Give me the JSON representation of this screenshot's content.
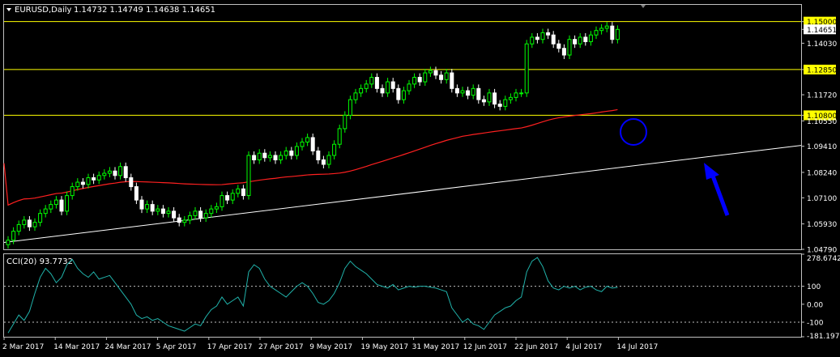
{
  "header": {
    "symbol": "EURUSD,Daily",
    "ohlc": "1.14732 1.14749 1.14638 1.14651"
  },
  "indicator": {
    "title": "CCI(20) 93.7732"
  },
  "colors": {
    "bull": "#00ff00",
    "bear": "#ffffff",
    "ma": "#ff2020",
    "trend": "#ffffff",
    "hline": "#ffff00",
    "annot": "#0000ff",
    "cci": "#20b2aa",
    "bg": "#000000",
    "grid": "#c0c0c0"
  },
  "chart_data": [
    {
      "type": "candlestick",
      "ylim": [
        1.0479,
        1.1575
      ],
      "y_ticks": [
        "1.15000",
        "1.14651",
        "1.14030",
        "1.12850",
        "1.11720",
        "1.10800",
        "1.10550",
        "1.09410",
        "1.08240",
        "1.07100",
        "1.05930",
        "1.04790"
      ],
      "x_labels": [
        "2 Mar 2017",
        "14 Mar 2017",
        "24 Mar 2017",
        "5 Apr 2017",
        "17 Apr 2017",
        "27 Apr 2017",
        "9 May 2017",
        "19 May 2017",
        "31 May 2017",
        "12 Jun 2017",
        "22 Jun 2017",
        "4 Jul 2017",
        "14 Jul 2017"
      ],
      "horizontal_levels": [
        "1.15000",
        "1.12850",
        "1.10800"
      ],
      "current_price": "1.14651",
      "closes": [
        1.052,
        1.056,
        1.059,
        1.061,
        1.058,
        1.06,
        1.064,
        1.066,
        1.068,
        1.07,
        1.065,
        1.072,
        1.076,
        1.078,
        1.077,
        1.08,
        1.079,
        1.081,
        1.082,
        1.083,
        1.081,
        1.085,
        1.08,
        1.076,
        1.07,
        1.066,
        1.068,
        1.065,
        1.066,
        1.064,
        1.065,
        1.062,
        1.06,
        1.061,
        1.063,
        1.065,
        1.062,
        1.064,
        1.066,
        1.067,
        1.072,
        1.07,
        1.073,
        1.075,
        1.072,
        1.09,
        1.088,
        1.091,
        1.089,
        1.09,
        1.088,
        1.09,
        1.092,
        1.09,
        1.094,
        1.096,
        1.098,
        1.092,
        1.088,
        1.086,
        1.09,
        1.095,
        1.102,
        1.108,
        1.115,
        1.118,
        1.12,
        1.122,
        1.125,
        1.12,
        1.118,
        1.123,
        1.12,
        1.115,
        1.119,
        1.122,
        1.125,
        1.123,
        1.127,
        1.128,
        1.126,
        1.124,
        1.127,
        1.12,
        1.118,
        1.119,
        1.117,
        1.12,
        1.115,
        1.114,
        1.118,
        1.113,
        1.112,
        1.115,
        1.116,
        1.118,
        1.118,
        1.14,
        1.143,
        1.142,
        1.145,
        1.144,
        1.14,
        1.138,
        1.135,
        1.142,
        1.14,
        1.143,
        1.141,
        1.144,
        1.146,
        1.147,
        1.148,
        1.142,
        1.1465
      ]
    },
    {
      "type": "line",
      "name": "CCI(20)",
      "ylim": [
        -181.1979,
        278.6742
      ],
      "y_ticks": [
        "278.6742",
        "100",
        "0.00",
        "-100",
        "-181.1979"
      ],
      "levels": [
        100,
        -100
      ],
      "values": [
        -160,
        -110,
        -60,
        -90,
        -40,
        60,
        150,
        200,
        170,
        120,
        150,
        220,
        250,
        200,
        170,
        150,
        180,
        140,
        150,
        160,
        120,
        80,
        40,
        0,
        -60,
        -80,
        -70,
        -90,
        -80,
        -100,
        -120,
        -130,
        -140,
        -150,
        -130,
        -110,
        -120,
        -70,
        -30,
        -10,
        40,
        0,
        20,
        40,
        -10,
        180,
        220,
        200,
        140,
        100,
        80,
        60,
        40,
        70,
        100,
        120,
        100,
        60,
        10,
        0,
        20,
        60,
        120,
        200,
        240,
        210,
        190,
        170,
        140,
        110,
        100,
        90,
        110,
        80,
        90,
        100,
        95,
        100,
        100,
        95,
        90,
        80,
        70,
        -20,
        -60,
        -100,
        -80,
        -110,
        -120,
        -140,
        -100,
        -60,
        -40,
        -20,
        -10,
        20,
        40,
        180,
        240,
        260,
        210,
        130,
        90,
        80,
        100,
        90,
        100,
        80,
        95,
        100,
        80,
        70,
        100,
        90,
        93.77
      ]
    }
  ]
}
